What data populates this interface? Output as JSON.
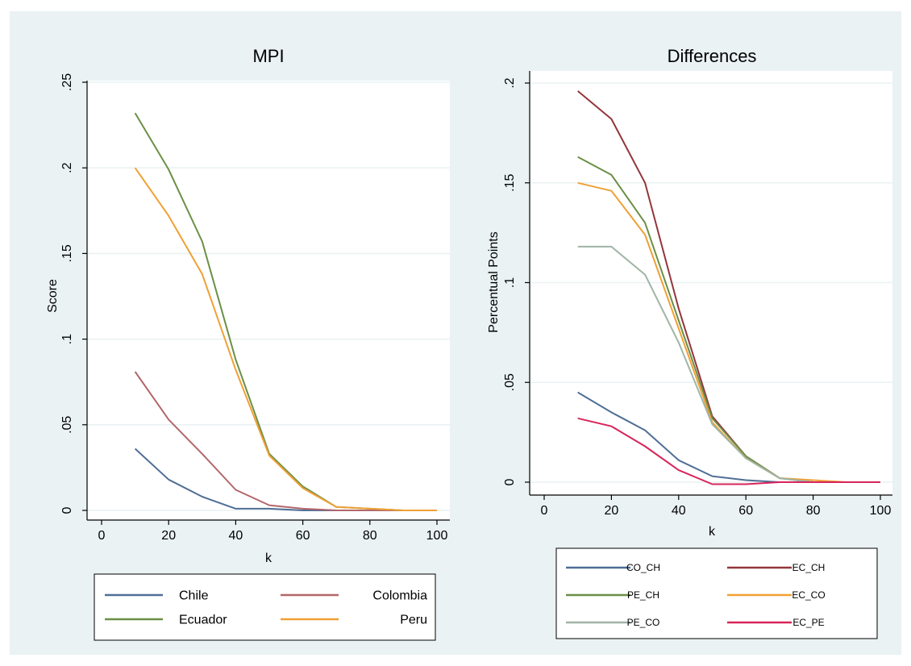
{
  "chart_data": [
    {
      "type": "line",
      "title": "MPI",
      "xlabel": "k",
      "ylabel": "Score",
      "xlim": [
        0,
        100
      ],
      "ylim": [
        0,
        0.25
      ],
      "x_ticks": [
        0,
        20,
        40,
        60,
        80,
        100
      ],
      "x_tick_labels": [
        "0",
        "20",
        "40",
        "60",
        "80",
        "100"
      ],
      "y_ticks": [
        0,
        0.05,
        0.1,
        0.15,
        0.2,
        0.25
      ],
      "y_tick_labels": [
        "0",
        ".05",
        ".1",
        ".15",
        ".2",
        ".25"
      ],
      "grid": true,
      "legend_placement": "bottom",
      "x": [
        10,
        20,
        30,
        40,
        50,
        60,
        70,
        80,
        90,
        100
      ],
      "series": [
        {
          "name": "Chile",
          "color": "#4f6e96",
          "values": [
            0.036,
            0.018,
            0.008,
            0.001,
            0.001,
            0.0,
            0.0,
            0.0,
            0.0,
            0.0
          ]
        },
        {
          "name": "Colombia",
          "color": "#b2676a",
          "values": [
            0.081,
            0.053,
            0.033,
            0.012,
            0.003,
            0.001,
            0.0,
            0.0,
            0.0,
            0.0
          ]
        },
        {
          "name": "Ecuador",
          "color": "#6b8f46",
          "values": [
            0.232,
            0.199,
            0.157,
            0.088,
            0.033,
            0.014,
            0.002,
            0.001,
            0.0,
            0.0
          ]
        },
        {
          "name": "Peru",
          "color": "#f0a035",
          "values": [
            0.2,
            0.172,
            0.138,
            0.082,
            0.032,
            0.013,
            0.002,
            0.001,
            0.0,
            0.0
          ]
        }
      ]
    },
    {
      "type": "line",
      "title": "Differences",
      "xlabel": "k",
      "ylabel": "Percentual Points",
      "xlim": [
        0,
        100
      ],
      "ylim": [
        0,
        0.2
      ],
      "x_ticks": [
        0,
        20,
        40,
        60,
        80,
        100
      ],
      "x_tick_labels": [
        "0",
        "20",
        "40",
        "60",
        "80",
        "100"
      ],
      "y_ticks": [
        0,
        0.05,
        0.1,
        0.15,
        0.2
      ],
      "y_tick_labels": [
        "0",
        ".05",
        ".1",
        ".15",
        ".2"
      ],
      "grid": true,
      "legend_placement": "bottom",
      "x": [
        10,
        20,
        30,
        40,
        50,
        60,
        70,
        80,
        90,
        100
      ],
      "series": [
        {
          "name": "CO_CH",
          "color": "#4f6e96",
          "values": [
            0.045,
            0.035,
            0.026,
            0.011,
            0.003,
            0.001,
            0.0,
            0.0,
            0.0,
            0.0
          ]
        },
        {
          "name": "EC_CH",
          "color": "#93363b",
          "values": [
            0.196,
            0.182,
            0.15,
            0.087,
            0.033,
            0.013,
            0.002,
            0.0,
            0.0,
            0.0
          ]
        },
        {
          "name": "PE_CH",
          "color": "#6b8f46",
          "values": [
            0.163,
            0.154,
            0.13,
            0.081,
            0.032,
            0.013,
            0.002,
            0.0,
            0.0,
            0.0
          ]
        },
        {
          "name": "EC_CO",
          "color": "#f0a035",
          "values": [
            0.15,
            0.146,
            0.124,
            0.077,
            0.03,
            0.012,
            0.002,
            0.001,
            0.0,
            0.0
          ]
        },
        {
          "name": "PE_CO",
          "color": "#9fb5a6",
          "values": [
            0.118,
            0.118,
            0.104,
            0.07,
            0.029,
            0.012,
            0.002,
            0.0,
            0.0,
            0.0
          ]
        },
        {
          "name": "EC_PE",
          "color": "#d8245a",
          "values": [
            0.032,
            0.028,
            0.018,
            0.006,
            -0.001,
            -0.001,
            0.0,
            0.0,
            0.0,
            0.0
          ]
        }
      ]
    }
  ]
}
